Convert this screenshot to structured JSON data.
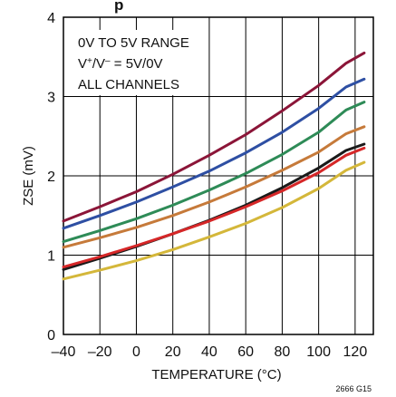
{
  "chart_data": {
    "type": "line",
    "title_fragment": "p",
    "xlabel": "TEMPERATURE (°C)",
    "ylabel": "ZSE (mV)",
    "xlim": [
      -40,
      130
    ],
    "ylim": [
      0,
      4
    ],
    "x_ticks": [
      "–40",
      "–20",
      "0",
      "20",
      "40",
      "60",
      "80",
      "100",
      "120"
    ],
    "x_tick_values": [
      -40,
      -20,
      0,
      20,
      40,
      60,
      80,
      100,
      120
    ],
    "y_ticks": [
      "0",
      "1",
      "2",
      "3",
      "4"
    ],
    "y_tick_values": [
      0,
      1,
      2,
      3,
      4
    ],
    "grid": true,
    "annotation": {
      "line1": "0V TO 5V RANGE",
      "line2_pre": "V",
      "line2_sup1": "+",
      "line2_mid": "/V",
      "line2_sup2": "–",
      "line2_post": " = 5V/0V",
      "line3": "ALL CHANNELS"
    },
    "figure_id": "2666 G15",
    "x": [
      -40,
      -20,
      0,
      20,
      40,
      60,
      80,
      100,
      115,
      125
    ],
    "series": [
      {
        "color": "#8b1538",
        "values": [
          1.43,
          1.61,
          1.8,
          2.02,
          2.26,
          2.52,
          2.82,
          3.14,
          3.42,
          3.55
        ]
      },
      {
        "color": "#2e4fa3",
        "values": [
          1.34,
          1.5,
          1.67,
          1.86,
          2.06,
          2.29,
          2.55,
          2.85,
          3.12,
          3.22
        ]
      },
      {
        "color": "#2e8b57",
        "values": [
          1.17,
          1.31,
          1.46,
          1.63,
          1.82,
          2.03,
          2.27,
          2.55,
          2.83,
          2.93
        ]
      },
      {
        "color": "#c67a3a",
        "values": [
          1.1,
          1.22,
          1.35,
          1.5,
          1.67,
          1.86,
          2.07,
          2.3,
          2.53,
          2.62
        ]
      },
      {
        "color": "#1a1a1a",
        "values": [
          0.82,
          0.96,
          1.11,
          1.27,
          1.44,
          1.63,
          1.85,
          2.1,
          2.32,
          2.4
        ]
      },
      {
        "color": "#d62728",
        "values": [
          0.85,
          0.98,
          1.12,
          1.27,
          1.43,
          1.61,
          1.81,
          2.04,
          2.26,
          2.35
        ]
      },
      {
        "color": "#d4b73a",
        "values": [
          0.7,
          0.81,
          0.93,
          1.07,
          1.23,
          1.4,
          1.6,
          1.84,
          2.07,
          2.17
        ]
      }
    ]
  }
}
